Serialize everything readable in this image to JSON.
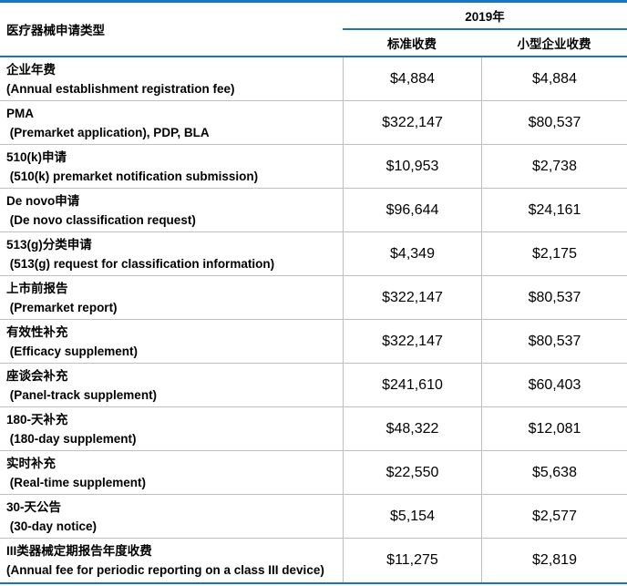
{
  "colors": {
    "accent_blue": "#1b75bc",
    "grid_gray": "#c0c0c0",
    "text": "#000000"
  },
  "table": {
    "header": {
      "row_type_label": "医疗器械申请类型",
      "year_label": "2019年",
      "col_standard": "标准收费",
      "col_small_business": "小型企业收费"
    },
    "rows": [
      {
        "zh": "企业年费",
        "en": "(Annual establishment registration fee)",
        "standard": "$4,884",
        "small_business": "$4,884"
      },
      {
        "zh": "PMA",
        "en": " (Premarket application), PDP, BLA",
        "standard": "$322,147",
        "small_business": "$80,537"
      },
      {
        "zh": "510(k)申请",
        "en": " (510(k) premarket notification submission)",
        "standard": "$10,953",
        "small_business": "$2,738"
      },
      {
        "zh": "De novo申请",
        "en": " (De novo classification request)",
        "standard": "$96,644",
        "small_business": "$24,161"
      },
      {
        "zh": "513(g)分类申请",
        "en": " (513(g) request for classification information)",
        "standard": "$4,349",
        "small_business": "$2,175"
      },
      {
        "zh": "上市前报告",
        "en": " (Premarket report)",
        "standard": "$322,147",
        "small_business": "$80,537"
      },
      {
        "zh": "有效性补充",
        "en": " (Efficacy supplement)",
        "standard": "$322,147",
        "small_business": "$80,537"
      },
      {
        "zh": "座谈会补充",
        "en": " (Panel-track supplement)",
        "standard": "$241,610",
        "small_business": "$60,403"
      },
      {
        "zh": "180-天补充",
        "en": " (180-day supplement)",
        "standard": "$48,322",
        "small_business": "$12,081"
      },
      {
        "zh": "实时补充",
        "en": " (Real-time supplement)",
        "standard": "$22,550",
        "small_business": "$5,638"
      },
      {
        "zh": "30-天公告",
        "en": " (30-day notice)",
        "standard": "$5,154",
        "small_business": "$2,577"
      },
      {
        "zh": "III类器械定期报告年度收费",
        "en": "(Annual fee for periodic reporting on a class III device)",
        "standard": "$11,275",
        "small_business": "$2,819"
      }
    ]
  }
}
